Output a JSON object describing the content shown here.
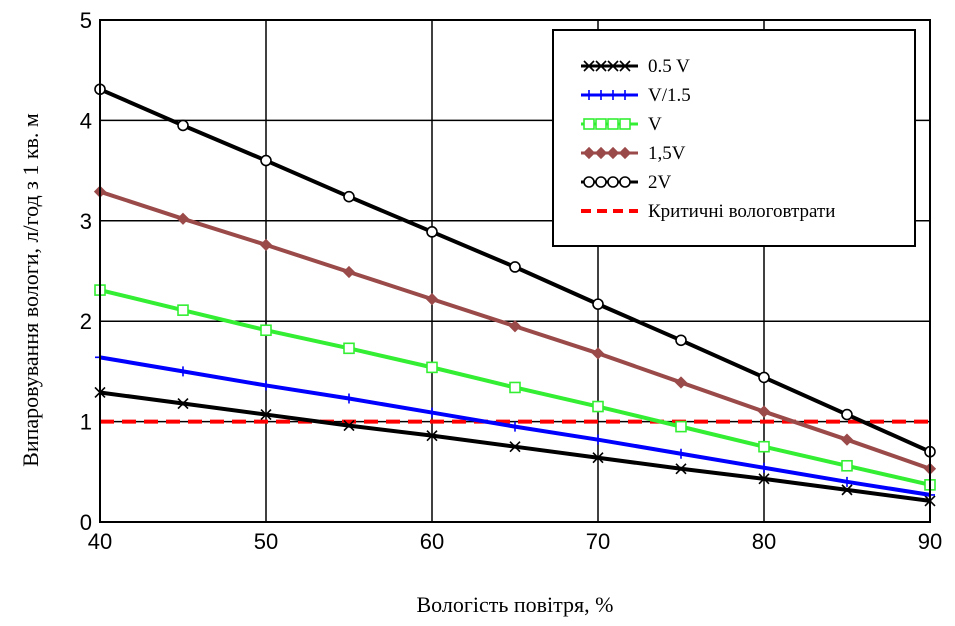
{
  "chart_data": {
    "type": "line",
    "xlabel": "Вологість повітря, %",
    "ylabel": "Випаровування вологи, л/год з 1 кв. м",
    "xlim": [
      40,
      90
    ],
    "ylim": [
      0,
      5
    ],
    "xticks": [
      "40",
      "50",
      "60",
      "70",
      "80",
      "90"
    ],
    "yticks": [
      "0",
      "1",
      "2",
      "3",
      "4",
      "5"
    ],
    "grid": true,
    "legend_position": "top-right",
    "x": [
      40,
      45,
      50,
      55,
      60,
      65,
      70,
      75,
      80,
      85,
      90
    ],
    "series": [
      {
        "name": "0.5 V",
        "color": "#000000",
        "marker": "x",
        "values": [
          1.29,
          1.18,
          1.07,
          0.96,
          0.86,
          0.75,
          0.64,
          0.53,
          0.43,
          0.32,
          0.21
        ]
      },
      {
        "name": "V/1.5",
        "color": "#0000ff",
        "marker": "plus",
        "values": [
          1.64,
          1.5,
          1.36,
          1.23,
          1.09,
          0.95,
          0.82,
          0.68,
          0.54,
          0.4,
          0.27
        ]
      },
      {
        "name": "V",
        "color": "#33ee33",
        "marker": "square",
        "values": [
          2.31,
          2.11,
          1.91,
          1.73,
          1.54,
          1.34,
          1.15,
          0.95,
          0.75,
          0.56,
          0.37
        ]
      },
      {
        "name": "1,5V",
        "color": "#9b4a4a",
        "marker": "diamond",
        "values": [
          3.29,
          3.02,
          2.76,
          2.49,
          2.22,
          1.95,
          1.68,
          1.39,
          1.1,
          0.82,
          0.53
        ]
      },
      {
        "name": "2V",
        "color": "#000000",
        "marker": "circle",
        "values": [
          4.31,
          3.95,
          3.6,
          3.24,
          2.89,
          2.54,
          2.17,
          1.81,
          1.44,
          1.07,
          0.7
        ]
      }
    ],
    "reference_line": {
      "name": "Критичні вологовтрати",
      "value": 1.0,
      "color": "#ff0000",
      "style": "dashed"
    }
  }
}
